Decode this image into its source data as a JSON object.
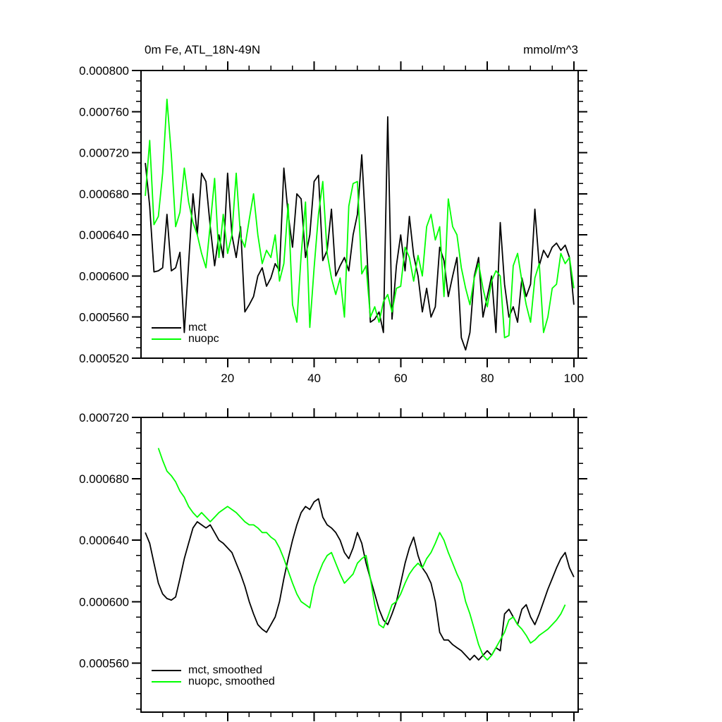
{
  "page": {
    "background": "#ffffff"
  },
  "chart_data": [
    {
      "type": "line",
      "title": "0m Fe, ATL_18N-49N",
      "units": "mmol/m^3",
      "xlabel": "",
      "ylabel": "",
      "xlim": [
        0,
        101
      ],
      "ylim": [
        0.00052,
        0.0008
      ],
      "xticks": [
        20,
        40,
        60,
        80,
        100
      ],
      "xtick_labels": [
        "20",
        "40",
        "60",
        "80",
        "100"
      ],
      "yticks": [
        520,
        560,
        600,
        640,
        680,
        720,
        760,
        800
      ],
      "ytick_labels": [
        "0.000520",
        "0.000560",
        "0.000600",
        "0.000640",
        "0.000680",
        "0.000720",
        "0.000760",
        "0.000800"
      ],
      "ytick_minor_step": 10,
      "xtick_minor_step": 5,
      "value_scale": 1e-06,
      "grid": false,
      "legend_position": "bottom-left-inside",
      "series": [
        {
          "name": "mct",
          "color": "#000000",
          "x_start": 1,
          "x_step": 1,
          "values": [
            710,
            668,
            604,
            605,
            608,
            660,
            605,
            608,
            623,
            545,
            612,
            680,
            640,
            700,
            692,
            648,
            610,
            640,
            618,
            700,
            640,
            618,
            648,
            565,
            572,
            580,
            600,
            608,
            590,
            598,
            612,
            605,
            705,
            660,
            628,
            680,
            675,
            618,
            640,
            692,
            698,
            615,
            625,
            665,
            600,
            610,
            618,
            605,
            640,
            660,
            718,
            640,
            555,
            558,
            565,
            545,
            755,
            558,
            610,
            640,
            605,
            658,
            620,
            600,
            565,
            588,
            560,
            570,
            628,
            615,
            580,
            600,
            618,
            540,
            528,
            545,
            600,
            618,
            560,
            580,
            600,
            545,
            652,
            592,
            560,
            570,
            555,
            598,
            580,
            592,
            665,
            610,
            625,
            618,
            628,
            632,
            625,
            630,
            618,
            572
          ]
        },
        {
          "name": "nuopc",
          "color": "#00ff00",
          "x_start": 1,
          "x_step": 1,
          "values": [
            678,
            732,
            650,
            658,
            700,
            772,
            718,
            648,
            662,
            705,
            672,
            652,
            640,
            622,
            608,
            650,
            695,
            618,
            660,
            622,
            640,
            700,
            638,
            628,
            655,
            680,
            640,
            612,
            625,
            618,
            640,
            595,
            612,
            670,
            572,
            555,
            620,
            672,
            550,
            608,
            660,
            692,
            622,
            598,
            582,
            598,
            560,
            668,
            690,
            692,
            602,
            610,
            560,
            570,
            555,
            575,
            582,
            565,
            588,
            590,
            628,
            618,
            595,
            620,
            600,
            648,
            660,
            635,
            648,
            580,
            675,
            648,
            640,
            608,
            588,
            572,
            598,
            612,
            588,
            570,
            595,
            605,
            600,
            540,
            542,
            610,
            622,
            595,
            572,
            555,
            598,
            612,
            545,
            560,
            588,
            592,
            622,
            612,
            618,
            588
          ]
        }
      ]
    },
    {
      "type": "line",
      "title": "",
      "units": "",
      "xlabel": "",
      "ylabel": "",
      "xlim": [
        0,
        101
      ],
      "ylim": [
        0.000528,
        0.00072
      ],
      "xticks": [
        20,
        40,
        60,
        80,
        100
      ],
      "xtick_labels": [
        "20",
        "40",
        "60",
        "80",
        "100"
      ],
      "yticks": [
        560,
        600,
        640,
        680,
        720
      ],
      "ytick_labels": [
        "0.000560",
        "0.000600",
        "0.000640",
        "0.000680",
        "0.000720"
      ],
      "ytick_minor_step": 10,
      "xtick_minor_step": 5,
      "value_scale": 1e-06,
      "grid": false,
      "legend_position": "bottom-left-inside",
      "series": [
        {
          "name": "mct, smoothed",
          "color": "#000000",
          "x_start": 1,
          "x_step": 1,
          "values": [
            645,
            638,
            625,
            612,
            605,
            602,
            601,
            603,
            615,
            628,
            638,
            648,
            652,
            650,
            648,
            650,
            645,
            640,
            638,
            635,
            632,
            625,
            618,
            610,
            600,
            592,
            585,
            582,
            580,
            585,
            590,
            600,
            615,
            628,
            640,
            650,
            658,
            662,
            660,
            665,
            667,
            655,
            650,
            648,
            645,
            640,
            632,
            628,
            635,
            645,
            638,
            625,
            615,
            605,
            595,
            588,
            585,
            592,
            600,
            612,
            625,
            635,
            642,
            630,
            622,
            618,
            612,
            600,
            580,
            575,
            575,
            572,
            570,
            568,
            565,
            562,
            565,
            562,
            565,
            568,
            565,
            570,
            568,
            592,
            595,
            590,
            585,
            595,
            598,
            590,
            585,
            592,
            600,
            608,
            615,
            622,
            628,
            632,
            622,
            616
          ]
        },
        {
          "name": "nuopc, smoothed",
          "color": "#00ff00",
          "x_start": 4,
          "x_step": 1,
          "values": [
            700,
            692,
            685,
            682,
            678,
            672,
            668,
            662,
            658,
            655,
            658,
            655,
            652,
            655,
            658,
            660,
            662,
            660,
            658,
            655,
            652,
            650,
            650,
            648,
            645,
            645,
            642,
            640,
            635,
            628,
            620,
            612,
            605,
            600,
            598,
            596,
            610,
            618,
            625,
            630,
            632,
            625,
            618,
            612,
            615,
            618,
            625,
            628,
            630,
            615,
            598,
            585,
            583,
            590,
            598,
            600,
            605,
            612,
            618,
            622,
            625,
            622,
            628,
            632,
            638,
            645,
            640,
            632,
            625,
            618,
            612,
            600,
            592,
            582,
            572,
            565,
            562,
            565,
            570,
            575,
            580,
            588,
            590,
            585,
            582,
            578,
            573,
            575,
            578,
            580,
            582,
            585,
            588,
            592,
            598
          ]
        }
      ]
    }
  ]
}
